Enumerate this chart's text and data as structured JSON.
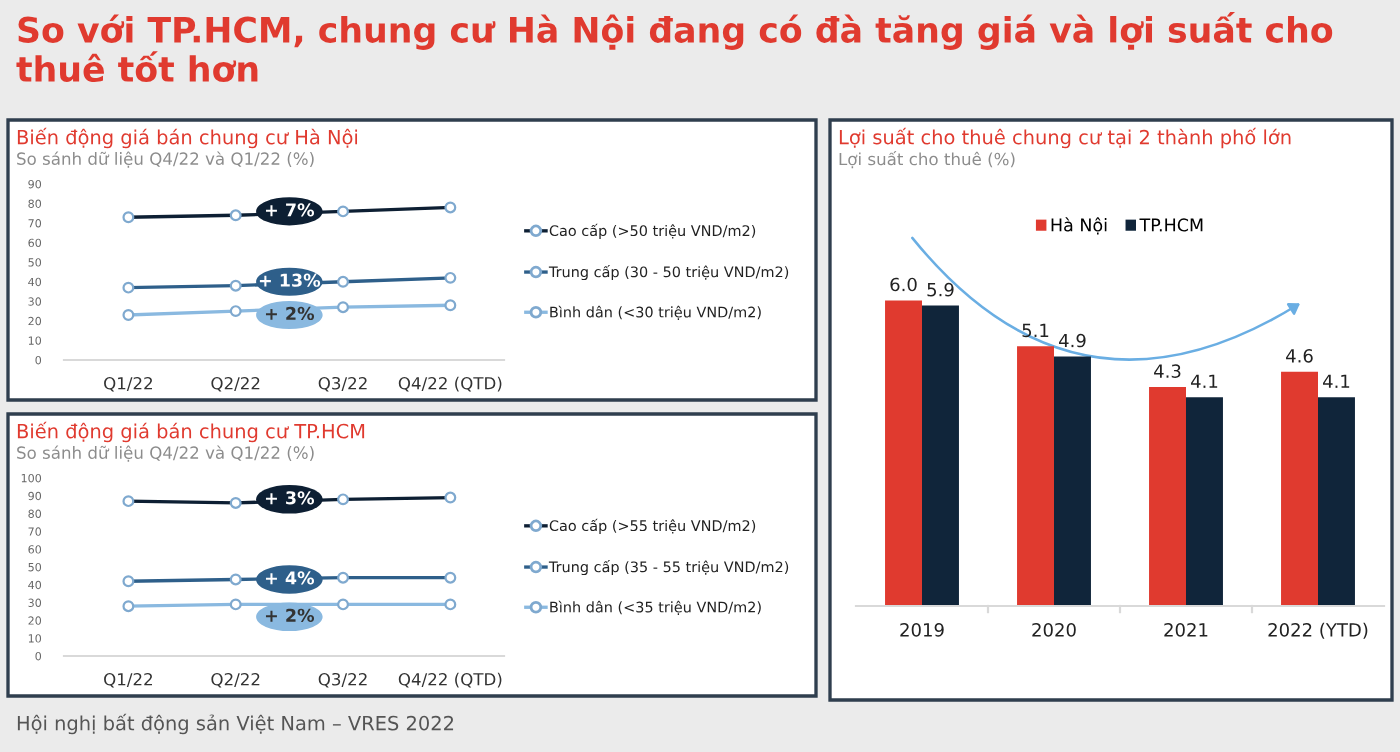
{
  "chart_data": [
    {
      "type": "line",
      "title": "Biến động giá bán chung cư Hà Nội",
      "subtitle": "So sánh dữ liệu Q4/22 và Q1/22 (%)",
      "categories": [
        "Q1/22",
        "Q2/22",
        "Q3/22",
        "Q4/22 (QTD)"
      ],
      "series": [
        {
          "name": "Cao cấp (>50 triệu VND/m2)",
          "color": "#0d1f33",
          "values": [
            73,
            74,
            76,
            78
          ]
        },
        {
          "name": "Trung cấp (30 - 50 triệu VND/m2)",
          "color": "#2e5f8a",
          "values": [
            37,
            38,
            40,
            42
          ]
        },
        {
          "name": "Bình dân (<30 triệu VND/m2)",
          "color": "#8ab9e0",
          "values": [
            23,
            25,
            27,
            28
          ]
        }
      ],
      "ylim": [
        0,
        90
      ],
      "yticks": [
        0,
        10,
        20,
        30,
        40,
        50,
        60,
        70,
        80,
        90
      ],
      "marker": "circle",
      "line_style": "solid",
      "grid": false,
      "legend": "right",
      "annotations": [
        "So với TP.HCM, chung cư Hà Nội đang có đà tăng giá và lợi suất cho thuê tốt hơn",
        "Hội nghị bất động sản Việt Nam – VRES 2022",
        {
          "text": "+ 7%",
          "y": 76
        },
        {
          "text": "+ 13%",
          "y": 40
        },
        {
          "text": "+ 2%",
          "y": 23
        }
      ]
    },
    {
      "type": "line",
      "title": "Biến động giá bán chung cư TP.HCM",
      "subtitle": "So sánh dữ liệu Q4/22 và Q1/22 (%)",
      "categories": [
        "Q1/22",
        "Q2/22",
        "Q3/22",
        "Q4/22 (QTD)"
      ],
      "series": [
        {
          "name": "Cao cấp (>55 triệu VND/m2)",
          "color": "#0d1f33",
          "values": [
            87,
            86,
            88,
            89
          ]
        },
        {
          "name": "Trung cấp (35 - 55 triệu VND/m2)",
          "color": "#2e5f8a",
          "values": [
            42,
            43,
            44,
            44
          ]
        },
        {
          "name": "Bình dân (<35 triệu VND/m2)",
          "color": "#8ab9e0",
          "values": [
            28,
            29,
            29,
            29
          ]
        }
      ],
      "ylim": [
        0,
        100
      ],
      "yticks": [
        0,
        10,
        20,
        30,
        40,
        50,
        60,
        70,
        80,
        90,
        100
      ],
      "marker": "circle",
      "line_style": "solid",
      "grid": false,
      "legend": "right",
      "annotations": [
        {
          "text": "+ 3%",
          "y": 88
        },
        {
          "text": "+ 4%",
          "y": 43
        },
        {
          "text": "+ 2%",
          "y": 22
        }
      ]
    },
    {
      "type": "bar",
      "title": "Lợi suất cho thuê chung cư tại 2 thành phố lớn",
      "subtitle": "Lợi suất cho thuê (%)",
      "categories": [
        "2019",
        "2020",
        "2021",
        "2022 (YTD)"
      ],
      "series": [
        {
          "name": "Hà Nội",
          "color": "#e03a2f",
          "values": [
            6.0,
            5.1,
            4.3,
            4.6
          ],
          "value_labels": [
            "6.0",
            "5.1",
            "4.3",
            "4.6"
          ]
        },
        {
          "name": "TP.HCM",
          "color": "#10253a",
          "values": [
            5.9,
            4.9,
            4.1,
            4.1
          ],
          "value_labels": [
            "5.9",
            "4.9",
            "4.1",
            "4.1"
          ]
        }
      ],
      "grid": false,
      "legend": "top"
    }
  ]
}
